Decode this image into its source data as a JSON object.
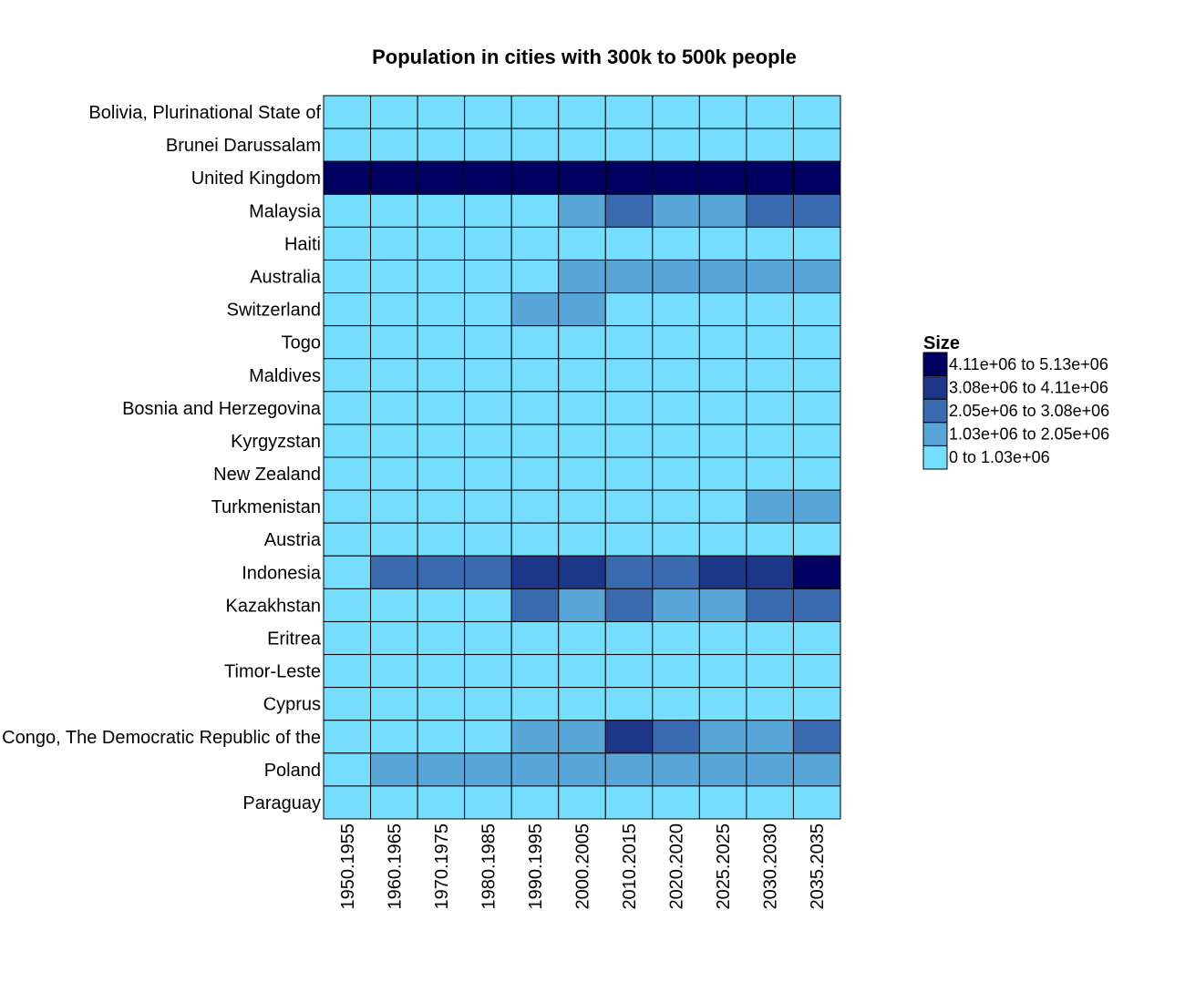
{
  "chart_data": {
    "type": "heatmap",
    "title": "Population in cities with 300k to 500k people",
    "columns": [
      "1950.1955",
      "1960.1965",
      "1970.1975",
      "1980.1985",
      "1990.1995",
      "2000.2005",
      "2010.2015",
      "2020.2020",
      "2025.2025",
      "2030.2030",
      "2035.2035"
    ],
    "rows": [
      "Bolivia, Plurinational State of",
      "Brunei Darussalam",
      "United Kingdom",
      "Malaysia",
      "Haiti",
      "Australia",
      "Switzerland",
      "Togo",
      "Maldives",
      "Bosnia and Herzegovina",
      "Kyrgyzstan",
      "New Zealand",
      "Turkmenistan",
      "Austria",
      "Indonesia",
      "Kazakhstan",
      "Eritrea",
      "Timor-Leste",
      "Cyprus",
      "Congo, The Democratic Republic of the",
      "Poland",
      "Paraguay"
    ],
    "bins": [
      "0 to 1.03e+06",
      "1.03e+06 to 2.05e+06",
      "2.05e+06 to 3.08e+06",
      "3.08e+06 to 4.11e+06",
      "4.11e+06 to 5.13e+06"
    ],
    "colors": [
      "#75DEFF",
      "#58A5D7",
      "#3A6BB0",
      "#1D3688",
      "#000060"
    ],
    "cells": [
      [
        0,
        0,
        0,
        0,
        0,
        0,
        0,
        0,
        0,
        0,
        0
      ],
      [
        0,
        0,
        0,
        0,
        0,
        0,
        0,
        0,
        0,
        0,
        0
      ],
      [
        4,
        4,
        4,
        4,
        4,
        4,
        4,
        4,
        4,
        4,
        4
      ],
      [
        0,
        0,
        0,
        0,
        0,
        1,
        2,
        1,
        1,
        2,
        2
      ],
      [
        0,
        0,
        0,
        0,
        0,
        0,
        0,
        0,
        0,
        0,
        0
      ],
      [
        0,
        0,
        0,
        0,
        0,
        1,
        1,
        1,
        1,
        1,
        1
      ],
      [
        0,
        0,
        0,
        0,
        1,
        1,
        0,
        0,
        0,
        0,
        0
      ],
      [
        0,
        0,
        0,
        0,
        0,
        0,
        0,
        0,
        0,
        0,
        0
      ],
      [
        0,
        0,
        0,
        0,
        0,
        0,
        0,
        0,
        0,
        0,
        0
      ],
      [
        0,
        0,
        0,
        0,
        0,
        0,
        0,
        0,
        0,
        0,
        0
      ],
      [
        0,
        0,
        0,
        0,
        0,
        0,
        0,
        0,
        0,
        0,
        0
      ],
      [
        0,
        0,
        0,
        0,
        0,
        0,
        0,
        0,
        0,
        0,
        0
      ],
      [
        0,
        0,
        0,
        0,
        0,
        0,
        0,
        0,
        0,
        1,
        1
      ],
      [
        0,
        0,
        0,
        0,
        0,
        0,
        0,
        0,
        0,
        0,
        0
      ],
      [
        0,
        2,
        2,
        2,
        3,
        3,
        2,
        2,
        3,
        3,
        4
      ],
      [
        0,
        0,
        0,
        0,
        2,
        1,
        2,
        1,
        1,
        2,
        2
      ],
      [
        0,
        0,
        0,
        0,
        0,
        0,
        0,
        0,
        0,
        0,
        0
      ],
      [
        0,
        0,
        0,
        0,
        0,
        0,
        0,
        0,
        0,
        0,
        0
      ],
      [
        0,
        0,
        0,
        0,
        0,
        0,
        0,
        0,
        0,
        0,
        0
      ],
      [
        0,
        0,
        0,
        0,
        1,
        1,
        3,
        2,
        1,
        1,
        2
      ],
      [
        0,
        1,
        1,
        1,
        1,
        1,
        1,
        1,
        1,
        1,
        1
      ],
      [
        0,
        0,
        0,
        0,
        0,
        0,
        0,
        0,
        0,
        0,
        0
      ]
    ],
    "legend": {
      "title": "Size",
      "position": "right"
    },
    "grid": false
  }
}
